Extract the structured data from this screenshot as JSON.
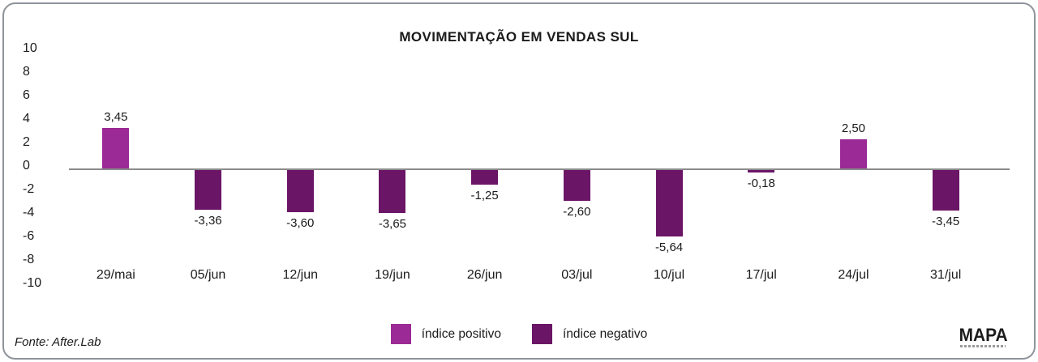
{
  "chart_data": {
    "type": "bar",
    "title": "MOVIMENTAÇÃO EM VENDAS SUL",
    "categories": [
      "29/mai",
      "05/jun",
      "12/jun",
      "19/jun",
      "26/jun",
      "03/jul",
      "10/jul",
      "17/jul",
      "24/jul",
      "31/jul"
    ],
    "values": [
      3.45,
      -3.36,
      -3.6,
      -3.65,
      -1.25,
      -2.6,
      -5.64,
      -0.18,
      2.5,
      -3.45
    ],
    "value_labels": [
      "3,45",
      "-3,36",
      "-3,60",
      "-3,65",
      "-1,25",
      "-2,60",
      "-5,64",
      "-0,18",
      "2,50",
      "-3,45"
    ],
    "xlabel": "",
    "ylabel": "",
    "ylim": [
      -10,
      10
    ],
    "yticks": [
      10,
      8,
      6,
      4,
      2,
      0,
      -2,
      -4,
      -6,
      -8,
      -10
    ],
    "grid": false,
    "colors": {
      "positive": "#9B2A96",
      "negative": "#6B1567",
      "axis_line": "#8a8a8a"
    },
    "legend": {
      "position": "bottom",
      "entries": [
        {
          "label": "índice positivo",
          "color": "#9B2A96"
        },
        {
          "label": "índice negativo",
          "color": "#6B1567"
        }
      ]
    }
  },
  "footer": {
    "source": "Fonte: After.Lab",
    "brand": "MAPA"
  }
}
